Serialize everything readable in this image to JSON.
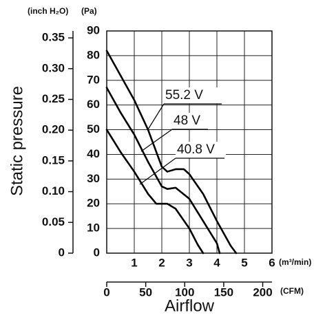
{
  "chart_data": {
    "type": "line",
    "xlabel": "Airflow",
    "ylabel": "Static pressure",
    "x_unit": "(m³/min)",
    "x2_unit": "(CFM)",
    "y_unit": "(Pa)",
    "y2_unit": "(inch H₂O)",
    "xlim": [
      0,
      6
    ],
    "xticks": [
      1,
      2,
      3,
      4,
      5,
      6
    ],
    "x2lim": [
      0,
      211.888
    ],
    "x2ticks": [
      0,
      50,
      100,
      150,
      200
    ],
    "ylim": [
      0,
      90
    ],
    "yticks": [
      0,
      10,
      20,
      30,
      40,
      50,
      60,
      70,
      80,
      90
    ],
    "y2lim": [
      0,
      0.3613
    ],
    "y2ticks": [
      0,
      0.05,
      {
        "value": 0.1,
        "label": "0.10"
      },
      0.15,
      {
        "value": 0.2,
        "label": "0.20"
      },
      0.25,
      {
        "value": 0.3,
        "label": "0.30"
      },
      0.35
    ],
    "grid": true,
    "series": [
      {
        "name": "55.2 V",
        "color": "#000000",
        "x": [
          0,
          0.5,
          1,
          1.5,
          2,
          2.2,
          2.5,
          2.8,
          3,
          3.5,
          4,
          4.5,
          4.7
        ],
        "values": [
          82,
          72,
          62,
          50,
          35,
          33,
          34,
          34,
          32,
          24,
          13,
          3,
          0
        ]
      },
      {
        "name": "48 V",
        "color": "#000000",
        "x": [
          0,
          0.5,
          1,
          1.5,
          2,
          2.2,
          2.5,
          3,
          3.5,
          4,
          4.1
        ],
        "values": [
          67,
          57,
          48,
          37,
          27,
          26,
          26.5,
          22,
          13,
          4,
          0
        ]
      },
      {
        "name": "40.8 V",
        "color": "#000000",
        "x": [
          0,
          0.5,
          1,
          1.5,
          1.8,
          2.2,
          2.5,
          3,
          3.3,
          3.5
        ],
        "values": [
          50,
          41,
          33,
          24,
          20,
          20,
          18,
          10,
          3.5,
          0
        ]
      }
    ]
  }
}
